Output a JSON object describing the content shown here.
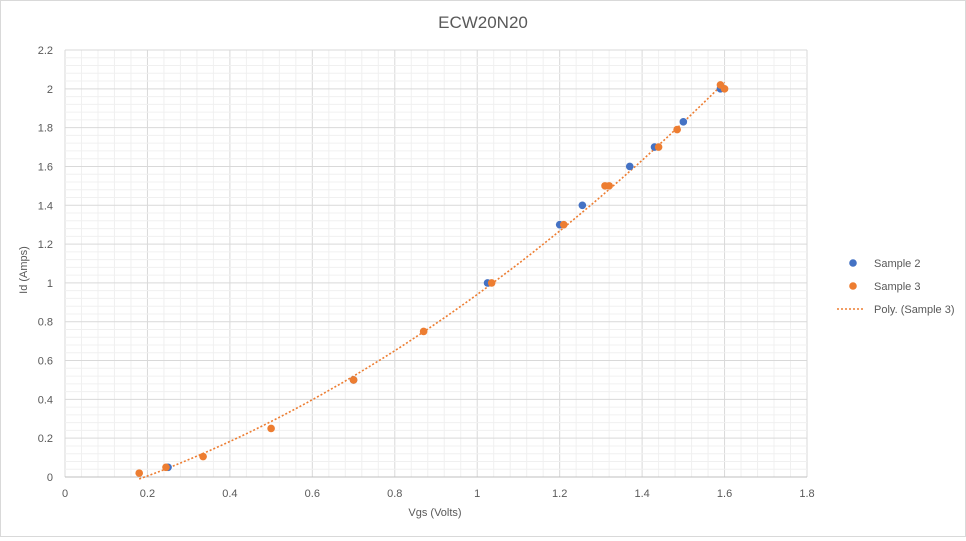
{
  "chart_data": {
    "type": "scatter",
    "title": "ECW20N20",
    "xlabel": "Vgs (Volts)",
    "ylabel": "Id (Amps)",
    "xlim": [
      0,
      1.8
    ],
    "ylim": [
      0,
      2.2
    ],
    "x_ticks": [
      "0",
      "0.2",
      "0.4",
      "0.6",
      "0.8",
      "1",
      "1.2",
      "1.4",
      "1.6",
      "1.8"
    ],
    "y_ticks": [
      "0",
      "0.2",
      "0.4",
      "0.6",
      "0.8",
      "1",
      "1.2",
      "1.4",
      "1.6",
      "1.8",
      "2",
      "2.2"
    ],
    "grid": "major and minor",
    "legend_position": "right",
    "series": [
      {
        "name": "Sample 2",
        "color": "#4472c4",
        "points": [
          [
            0.25,
            0.05
          ],
          [
            0.7,
            0.5
          ],
          [
            1.025,
            1.0
          ],
          [
            1.2,
            1.3
          ],
          [
            1.255,
            1.4
          ],
          [
            1.37,
            1.6
          ],
          [
            1.43,
            1.7
          ],
          [
            1.5,
            1.83
          ],
          [
            1.59,
            2.0
          ]
        ]
      },
      {
        "name": "Sample 3",
        "color": "#ed7d31",
        "points": [
          [
            0.18,
            0.02
          ],
          [
            0.245,
            0.05
          ],
          [
            0.335,
            0.105
          ],
          [
            0.5,
            0.25
          ],
          [
            0.7,
            0.5
          ],
          [
            0.87,
            0.75
          ],
          [
            1.035,
            1.0
          ],
          [
            1.21,
            1.3
          ],
          [
            1.31,
            1.5
          ],
          [
            1.32,
            1.5
          ],
          [
            1.44,
            1.7
          ],
          [
            1.485,
            1.79
          ],
          [
            1.59,
            2.02
          ],
          [
            1.6,
            2.0
          ]
        ]
      }
    ],
    "trendline": {
      "name": "Poly. (Sample 3)",
      "color": "#ed7d31",
      "style": "dotted",
      "x_range": [
        0.18,
        1.6
      ]
    }
  }
}
